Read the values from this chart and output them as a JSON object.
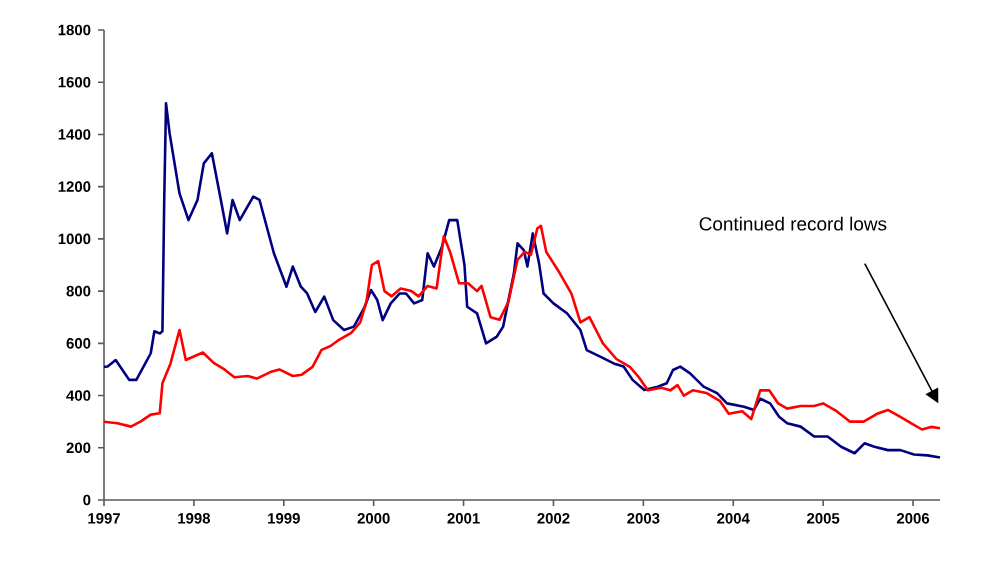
{
  "chart_data": {
    "type": "line",
    "series": [
      {
        "color": "#000080",
        "x": [
          1997.0,
          1997.04,
          1997.13,
          1997.28,
          1997.36,
          1997.52,
          1997.56,
          1997.62,
          1997.65,
          1997.67,
          1997.69,
          1997.73,
          1997.84,
          1997.94,
          1998.04,
          1998.11,
          1998.2,
          1998.3,
          1998.37,
          1998.43,
          1998.51,
          1998.66,
          1998.73,
          1998.89,
          1999.03,
          1999.1,
          1999.19,
          1999.26,
          1999.35,
          1999.45,
          1999.55,
          1999.67,
          1999.78,
          1999.9,
          1999.97,
          2000.04,
          2000.1,
          2000.19,
          2000.29,
          2000.36,
          2000.45,
          2000.54,
          2000.6,
          2000.67,
          2000.76,
          2000.84,
          2000.93,
          2001.01,
          2001.04,
          2001.15,
          2001.25,
          2001.37,
          2001.44,
          2001.56,
          2001.6,
          2001.67,
          2001.71,
          2001.77,
          2001.84,
          2001.89,
          2002.0,
          2002.15,
          2002.3,
          2002.37,
          2002.52,
          2002.67,
          2002.78,
          2002.88,
          2003.01,
          2003.16,
          2003.26,
          2003.33,
          2003.41,
          2003.52,
          2003.67,
          2003.82,
          2003.93,
          2004.12,
          2004.23,
          2004.3,
          2004.41,
          2004.51,
          2004.6,
          2004.75,
          2004.9,
          2005.05,
          2005.2,
          2005.35,
          2005.46,
          2005.57,
          2005.72,
          2005.86,
          2006.01,
          2006.16,
          2006.3
        ],
        "values": [
          510,
          511,
          536,
          460,
          460,
          562,
          646,
          638,
          646,
          1149,
          1519,
          1404,
          1174,
          1072,
          1149,
          1289,
          1328,
          1149,
          1021,
          1149,
          1072,
          1162,
          1149,
          945,
          817,
          894,
          817,
          791,
          720,
          779,
          689,
          651,
          664,
          740,
          804,
          766,
          689,
          753,
          791,
          791,
          753,
          766,
          945,
          894,
          970,
          1072,
          1072,
          900,
          740,
          715,
          600,
          626,
          664,
          868,
          983,
          957,
          894,
          1021,
          906,
          791,
          753,
          715,
          651,
          574,
          549,
          523,
          511,
          460,
          421,
          434,
          447,
          498,
          511,
          485,
          434,
          409,
          370,
          357,
          345,
          388,
          370,
          319,
          294,
          281,
          243,
          243,
          204,
          179,
          217,
          204,
          191,
          191,
          174,
          171,
          163
        ]
      },
      {
        "color": "#ff0000",
        "x": [
          1997.0,
          1997.15,
          1997.3,
          1997.41,
          1997.52,
          1997.62,
          1997.65,
          1997.74,
          1997.84,
          1997.91,
          1998.1,
          1998.22,
          1998.34,
          1998.45,
          1998.6,
          1998.7,
          1998.85,
          1998.95,
          1999.1,
          1999.2,
          1999.32,
          1999.42,
          1999.52,
          1999.6,
          1999.75,
          1999.85,
          1999.92,
          1999.98,
          2000.05,
          2000.12,
          2000.2,
          2000.3,
          2000.42,
          2000.5,
          2000.6,
          2000.7,
          2000.78,
          2000.85,
          2000.95,
          2001.05,
          2001.15,
          2001.2,
          2001.3,
          2001.4,
          2001.5,
          2001.6,
          2001.68,
          2001.75,
          2001.82,
          2001.86,
          2001.92,
          2002.05,
          2002.2,
          2002.3,
          2002.4,
          2002.55,
          2002.7,
          2002.85,
          2002.95,
          2003.05,
          2003.2,
          2003.3,
          2003.38,
          2003.45,
          2003.55,
          2003.7,
          2003.85,
          2003.95,
          2004.1,
          2004.2,
          2004.3,
          2004.4,
          2004.5,
          2004.6,
          2004.75,
          2004.9,
          2005.0,
          2005.15,
          2005.3,
          2005.45,
          2005.6,
          2005.72,
          2005.85,
          2006.0,
          2006.1,
          2006.2,
          2006.3
        ],
        "values": [
          300,
          294,
          281,
          301,
          327,
          332,
          447,
          523,
          651,
          536,
          565,
          525,
          500,
          470,
          475,
          465,
          490,
          500,
          475,
          480,
          510,
          575,
          590,
          610,
          640,
          680,
          760,
          900,
          915,
          800,
          780,
          810,
          800,
          780,
          820,
          810,
          1010,
          950,
          830,
          830,
          800,
          820,
          700,
          690,
          760,
          920,
          950,
          940,
          1040,
          1050,
          950,
          880,
          790,
          680,
          700,
          600,
          540,
          510,
          470,
          420,
          430,
          420,
          440,
          400,
          420,
          410,
          380,
          330,
          340,
          310,
          420,
          420,
          370,
          350,
          360,
          360,
          370,
          340,
          300,
          300,
          330,
          345,
          320,
          290,
          270,
          280,
          275
        ]
      }
    ],
    "xlim": [
      1997,
      2006.3
    ],
    "xticks": [
      1997,
      1998,
      1999,
      2000,
      2001,
      2002,
      2003,
      2004,
      2005,
      2006
    ],
    "ylim": [
      0,
      1800
    ],
    "yticks": [
      0,
      200,
      400,
      600,
      800,
      1000,
      1200,
      1400,
      1600,
      1800
    ],
    "grid": false,
    "line_style": "solid",
    "annotations": [
      "Continued record lows"
    ]
  }
}
